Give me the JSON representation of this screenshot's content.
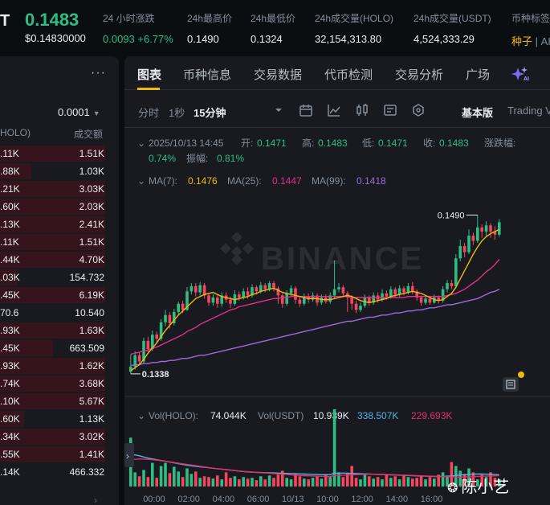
{
  "ticker": {
    "symbol": "T",
    "price": "0.1483",
    "price_usd": "$0.14830000",
    "stats": [
      {
        "label": "24 小时涨跌",
        "value": "0.0093 +6.77%",
        "kind": "green"
      },
      {
        "label": "24h最高价",
        "value": "0.1490",
        "kind": ""
      },
      {
        "label": "24h最低价",
        "value": "0.1324",
        "kind": ""
      },
      {
        "label": "24h成交量(HOLO)",
        "value": "32,154,313.80",
        "kind": ""
      },
      {
        "label": "24h成交量(USDT)",
        "value": "4,524,333.29",
        "kind": ""
      },
      {
        "label": "币种标签",
        "value": "种子",
        "extra": "| AI",
        "kind": "tag"
      }
    ]
  },
  "orderbook": {
    "more_label": "···",
    "precision": "0.0001",
    "col_left": "HOLO)",
    "col_right": "成交额",
    "rows": [
      {
        "a": ".11K",
        "b": "1.51K",
        "depth": 1.0
      },
      {
        "a": ".88K",
        "b": "1.03K",
        "depth": 0.3
      },
      {
        "a": ".21K",
        "b": "3.03K",
        "depth": 1.0
      },
      {
        "a": ".60K",
        "b": "2.03K",
        "depth": 1.0
      },
      {
        "a": ".13K",
        "b": "2.41K",
        "depth": 1.0
      },
      {
        "a": ".11K",
        "b": "1.51K",
        "depth": 1.0
      },
      {
        "a": ".44K",
        "b": "4.70K",
        "depth": 1.0
      },
      {
        "a": ".03K",
        "b": "154.732",
        "depth": 0.17
      },
      {
        "a": ".45K",
        "b": "6.19K",
        "depth": 1.0
      },
      {
        "a": "70.6",
        "b": "10.540",
        "depth": 0.0
      },
      {
        "a": ".93K",
        "b": "1.63K",
        "depth": 1.0
      },
      {
        "a": ".45K",
        "b": "663.509",
        "depth": 0.5
      },
      {
        "a": ".93K",
        "b": "1.62K",
        "depth": 1.0
      },
      {
        "a": ".74K",
        "b": "3.68K",
        "depth": 1.0
      },
      {
        "a": ".10K",
        "b": "5.67K",
        "depth": 1.0
      },
      {
        "a": ".60K",
        "b": "1.13K",
        "depth": 0.23
      },
      {
        "a": ".34K",
        "b": "3.02K",
        "depth": 1.0
      },
      {
        "a": ".55K",
        "b": "1.41K",
        "depth": 1.0
      },
      {
        "a": ".14K",
        "b": "466.332",
        "depth": 0.0
      }
    ]
  },
  "panel": {
    "tabs": [
      {
        "label": "图表",
        "active": true
      },
      {
        "label": "币种信息",
        "active": false
      },
      {
        "label": "交易数据",
        "active": false
      },
      {
        "label": "代币检测",
        "active": false
      },
      {
        "label": "交易分析",
        "active": false
      },
      {
        "label": "广场",
        "active": false
      }
    ],
    "toolbar": {
      "time_label": "分时",
      "one_sec": "1秒",
      "interval": "15分钟",
      "basic": "基本版",
      "tradingview": "Trading View"
    }
  },
  "chart_data": {
    "type": "candlestick",
    "interval": "15m",
    "info": {
      "date": "2025/10/13 14:45",
      "open_label": "开:",
      "open": "0.1471",
      "high_label": "高:",
      "high": "0.1483",
      "low_label": "低:",
      "low": "0.1471",
      "close_label": "收:",
      "close": "0.1483",
      "change_label": "涨跌幅:",
      "change": "0.74%",
      "amp_label": "振幅:",
      "amp": "0.81%"
    },
    "ma": [
      {
        "label": "MA(7):",
        "value": "0.1476",
        "color": "#f0b90b"
      },
      {
        "label": "MA(25):",
        "value": "0.1447",
        "color": "#e52e8a"
      },
      {
        "label": "MA(99):",
        "value": "0.1418",
        "color": "#9c6ade"
      }
    ],
    "high_marker": "0.1490",
    "low_marker": "0.1338",
    "watermark": "BINANCE",
    "price_range": [
      0.1325,
      0.1495
    ],
    "candles": [
      [
        0.1338,
        0.1343,
        0.1355,
        0.1336
      ],
      [
        0.1343,
        0.1354,
        0.1358,
        0.134
      ],
      [
        0.1354,
        0.1348,
        0.1357,
        0.1344
      ],
      [
        0.1348,
        0.1368,
        0.1371,
        0.1346
      ],
      [
        0.1368,
        0.136,
        0.1372,
        0.1357
      ],
      [
        0.136,
        0.1374,
        0.1378,
        0.1358
      ],
      [
        0.1374,
        0.137,
        0.1377,
        0.1366
      ],
      [
        0.137,
        0.1386,
        0.1389,
        0.1368
      ],
      [
        0.1386,
        0.1393,
        0.1398,
        0.1382
      ],
      [
        0.1393,
        0.1385,
        0.1396,
        0.138
      ],
      [
        0.1385,
        0.1396,
        0.1399,
        0.1383
      ],
      [
        0.1396,
        0.1404,
        0.1406,
        0.1393
      ],
      [
        0.1404,
        0.1398,
        0.1407,
        0.1395
      ],
      [
        0.1398,
        0.1416,
        0.142,
        0.1397
      ],
      [
        0.1416,
        0.1421,
        0.1424,
        0.1413
      ],
      [
        0.1421,
        0.1415,
        0.1424,
        0.1411
      ],
      [
        0.1415,
        0.1422,
        0.1425,
        0.1412
      ],
      [
        0.1422,
        0.1412,
        0.1424,
        0.1409
      ],
      [
        0.1412,
        0.1405,
        0.1414,
        0.1402
      ],
      [
        0.1405,
        0.141,
        0.1413,
        0.1402
      ],
      [
        0.141,
        0.1404,
        0.1413,
        0.14
      ],
      [
        0.1404,
        0.1412,
        0.1415,
        0.1401
      ],
      [
        0.1412,
        0.1408,
        0.1415,
        0.1405
      ],
      [
        0.1408,
        0.1404,
        0.1411,
        0.14
      ],
      [
        0.1404,
        0.1413,
        0.1417,
        0.1402
      ],
      [
        0.1413,
        0.141,
        0.1416,
        0.1407
      ],
      [
        0.141,
        0.1416,
        0.1419,
        0.1408
      ],
      [
        0.1416,
        0.1412,
        0.142,
        0.1409
      ],
      [
        0.1412,
        0.142,
        0.1423,
        0.141
      ],
      [
        0.142,
        0.1416,
        0.1422,
        0.1413
      ],
      [
        0.1416,
        0.1422,
        0.1425,
        0.1414
      ],
      [
        0.1422,
        0.1418,
        0.1424,
        0.1415
      ],
      [
        0.1418,
        0.1424,
        0.1426,
        0.1416
      ],
      [
        0.1424,
        0.1419,
        0.1426,
        0.1416
      ],
      [
        0.1419,
        0.1412,
        0.1421,
        0.1404
      ],
      [
        0.1412,
        0.1404,
        0.1414,
        0.14
      ],
      [
        0.1404,
        0.1414,
        0.1417,
        0.1402
      ],
      [
        0.1414,
        0.1419,
        0.1422,
        0.1411
      ],
      [
        0.1419,
        0.1408,
        0.1421,
        0.1404
      ],
      [
        0.1408,
        0.1404,
        0.1411,
        0.1401
      ],
      [
        0.1404,
        0.1411,
        0.1414,
        0.1402
      ],
      [
        0.1411,
        0.1408,
        0.1414,
        0.1405
      ],
      [
        0.1408,
        0.1412,
        0.1415,
        0.1406
      ],
      [
        0.1412,
        0.1405,
        0.1414,
        0.1402
      ],
      [
        0.1405,
        0.141,
        0.1413,
        0.1403
      ],
      [
        0.141,
        0.1406,
        0.1413,
        0.1404
      ],
      [
        0.1406,
        0.1412,
        0.1415,
        0.1404
      ],
      [
        0.1412,
        0.1418,
        0.1446,
        0.1409
      ],
      [
        0.1418,
        0.142,
        0.1424,
        0.1415
      ],
      [
        0.142,
        0.1414,
        0.1422,
        0.1411
      ],
      [
        0.1414,
        0.141,
        0.1416,
        0.1396
      ],
      [
        0.141,
        0.1404,
        0.1412,
        0.1398
      ],
      [
        0.1404,
        0.1398,
        0.1407,
        0.1395
      ],
      [
        0.1398,
        0.1402,
        0.1405,
        0.1396
      ],
      [
        0.1402,
        0.141,
        0.1413,
        0.14
      ],
      [
        0.141,
        0.1405,
        0.1412,
        0.1402
      ],
      [
        0.1405,
        0.1412,
        0.1415,
        0.1403
      ],
      [
        0.1412,
        0.1408,
        0.1415,
        0.1405
      ],
      [
        0.1408,
        0.1414,
        0.1418,
        0.1406
      ],
      [
        0.1414,
        0.1411,
        0.1417,
        0.1408
      ],
      [
        0.1411,
        0.1418,
        0.1421,
        0.1409
      ],
      [
        0.1418,
        0.1413,
        0.142,
        0.141
      ],
      [
        0.1413,
        0.1419,
        0.1422,
        0.1411
      ],
      [
        0.1419,
        0.1415,
        0.1421,
        0.1412
      ],
      [
        0.1415,
        0.1421,
        0.1424,
        0.1413
      ],
      [
        0.1421,
        0.1416,
        0.1425,
        0.1413
      ],
      [
        0.1416,
        0.141,
        0.1418,
        0.1407
      ],
      [
        0.141,
        0.1405,
        0.1412,
        0.1402
      ],
      [
        0.1405,
        0.1409,
        0.1412,
        0.1403
      ],
      [
        0.1409,
        0.1405,
        0.1411,
        0.1403
      ],
      [
        0.1405,
        0.141,
        0.1413,
        0.1404
      ],
      [
        0.141,
        0.1407,
        0.1412,
        0.1404
      ],
      [
        0.1407,
        0.1418,
        0.1421,
        0.1405
      ],
      [
        0.1418,
        0.1424,
        0.1427,
        0.1415
      ],
      [
        0.1424,
        0.1421,
        0.1427,
        0.1418
      ],
      [
        0.1421,
        0.1448,
        0.1452,
        0.1419
      ],
      [
        0.1448,
        0.146,
        0.1466,
        0.1445
      ],
      [
        0.146,
        0.1454,
        0.1463,
        0.1449
      ],
      [
        0.1454,
        0.147,
        0.1476,
        0.1452
      ],
      [
        0.147,
        0.1465,
        0.1473,
        0.1461
      ],
      [
        0.1465,
        0.1478,
        0.149,
        0.1463
      ],
      [
        0.1478,
        0.1474,
        0.1481,
        0.1468
      ],
      [
        0.1474,
        0.148,
        0.1484,
        0.147
      ],
      [
        0.148,
        0.1474,
        0.1482,
        0.1468
      ],
      [
        0.1474,
        0.1471,
        0.1479,
        0.1466
      ],
      [
        0.1471,
        0.1483,
        0.1486,
        0.1469
      ]
    ],
    "ma7": [
      0.1339,
      0.1342,
      0.1345,
      0.135,
      0.1356,
      0.1361,
      0.1366,
      0.1372,
      0.1378,
      0.1383,
      0.1388,
      0.1393,
      0.1397,
      0.1401,
      0.1405,
      0.1409,
      0.1411,
      0.1413,
      0.1414,
      0.1415,
      0.1413,
      0.1411,
      0.141,
      0.1409,
      0.1408,
      0.1409,
      0.141,
      0.1411,
      0.1413,
      0.1414,
      0.1416,
      0.1417,
      0.1418,
      0.1419,
      0.1417,
      0.1415,
      0.1414,
      0.1413,
      0.1412,
      0.1411,
      0.141,
      0.1409,
      0.1409,
      0.1409,
      0.1408,
      0.1408,
      0.1408,
      0.1409,
      0.141,
      0.1411,
      0.1412,
      0.1411,
      0.1409,
      0.1407,
      0.1406,
      0.1405,
      0.1406,
      0.1407,
      0.1408,
      0.1409,
      0.1411,
      0.1412,
      0.1413,
      0.1414,
      0.1415,
      0.1416,
      0.1415,
      0.1414,
      0.1412,
      0.141,
      0.1408,
      0.1407,
      0.1408,
      0.1411,
      0.1414,
      0.142,
      0.1428,
      0.1436,
      0.1444,
      0.1452,
      0.1459,
      0.1465,
      0.1469,
      0.1472,
      0.1474,
      0.1476
    ],
    "ma25": [
      0.1355,
      0.1356,
      0.1357,
      0.1358,
      0.1359,
      0.1361,
      0.1362,
      0.1364,
      0.1366,
      0.1368,
      0.137,
      0.1372,
      0.1374,
      0.1377,
      0.1379,
      0.1381,
      0.1384,
      0.1386,
      0.1388,
      0.139,
      0.1392,
      0.1394,
      0.1396,
      0.1398,
      0.1399,
      0.1401,
      0.1402,
      0.1403,
      0.1404,
      0.1405,
      0.1406,
      0.1407,
      0.1408,
      0.1409,
      0.1409,
      0.141,
      0.141,
      0.1411,
      0.1411,
      0.1411,
      0.1411,
      0.1411,
      0.1411,
      0.1411,
      0.1411,
      0.1411,
      0.1411,
      0.1411,
      0.1411,
      0.1411,
      0.1411,
      0.141,
      0.141,
      0.141,
      0.141,
      0.141,
      0.141,
      0.141,
      0.141,
      0.141,
      0.141,
      0.141,
      0.141,
      0.141,
      0.1411,
      0.1411,
      0.1411,
      0.1411,
      0.1411,
      0.1411,
      0.1411,
      0.1411,
      0.1411,
      0.1412,
      0.1413,
      0.1414,
      0.1416,
      0.1418,
      0.1421,
      0.1424,
      0.1427,
      0.1431,
      0.1435,
      0.1438,
      0.1442,
      0.1447
    ],
    "ma99": [
      0.1344,
      0.1345,
      0.1345,
      0.1346,
      0.1346,
      0.1347,
      0.1347,
      0.1348,
      0.1348,
      0.1349,
      0.1349,
      0.135,
      0.1351,
      0.1351,
      0.1352,
      0.1353,
      0.1354,
      0.1354,
      0.1355,
      0.1356,
      0.1357,
      0.1358,
      0.1359,
      0.136,
      0.1361,
      0.1362,
      0.1363,
      0.1364,
      0.1365,
      0.1366,
      0.1367,
      0.1368,
      0.1369,
      0.137,
      0.1371,
      0.1372,
      0.1373,
      0.1374,
      0.1375,
      0.1376,
      0.1377,
      0.1378,
      0.1379,
      0.138,
      0.1381,
      0.1382,
      0.1383,
      0.1384,
      0.1385,
      0.1386,
      0.1387,
      0.1387,
      0.1388,
      0.1389,
      0.139,
      0.1391,
      0.1391,
      0.1392,
      0.1393,
      0.1393,
      0.1394,
      0.1395,
      0.1395,
      0.1396,
      0.1397,
      0.1397,
      0.1398,
      0.1398,
      0.1399,
      0.14,
      0.14,
      0.1401,
      0.1402,
      0.1403,
      0.1403,
      0.1404,
      0.1405,
      0.1406,
      0.1407,
      0.1408,
      0.1409,
      0.1411,
      0.1413,
      0.1415,
      0.1416,
      0.1418
    ],
    "volume": {
      "header_label": "Vol(HOLO):",
      "header_value": "74.044K",
      "usdt_label": "Vol(USDT)",
      "usdt_value": "10.939K",
      "ma1_value": "338.507K",
      "ma1_color": "#54b4e6",
      "ma2_value": "229.693K",
      "ma2_color": "#e52e6b",
      "range": [
        0,
        1000
      ],
      "bars": [
        620,
        180,
        130,
        210,
        120,
        300,
        110,
        260,
        300,
        170,
        250,
        190,
        120,
        230,
        160,
        190,
        110,
        130,
        120,
        100,
        140,
        90,
        180,
        110,
        130,
        90,
        120,
        100,
        110,
        80,
        130,
        90,
        140,
        110,
        150,
        200,
        110,
        90,
        160,
        130,
        100,
        90,
        110,
        130,
        100,
        150,
        120,
        980,
        180,
        120,
        170,
        260,
        110,
        90,
        160,
        130,
        100,
        120,
        90,
        150,
        110,
        130,
        90,
        140,
        120,
        100,
        110,
        130,
        90,
        120,
        100,
        150,
        180,
        140,
        310,
        260,
        200,
        160,
        230,
        180,
        90,
        150,
        120,
        180,
        110,
        90
      ],
      "ma_a": [
        410,
        400,
        390,
        375,
        360,
        350,
        340,
        330,
        320,
        310,
        300,
        290,
        280,
        270,
        262,
        256,
        250,
        244,
        238,
        232,
        226,
        220,
        214,
        208,
        202,
        196,
        190,
        186,
        182,
        180,
        178,
        176,
        174,
        172,
        170,
        168,
        166,
        164,
        162,
        160,
        158,
        156,
        154,
        152,
        150,
        150,
        150,
        170,
        170,
        170,
        168,
        166,
        164,
        162,
        160,
        158,
        156,
        154,
        152,
        150,
        148,
        146,
        144,
        142,
        140,
        138,
        136,
        134,
        132,
        130,
        128,
        128,
        128,
        130,
        134,
        140,
        146,
        150,
        154,
        156,
        158,
        158,
        156,
        154,
        152,
        150
      ],
      "ma_b": [
        340,
        345,
        350,
        348,
        345,
        340,
        335,
        328,
        320,
        312,
        304,
        296,
        288,
        280,
        272,
        264,
        256,
        248,
        240,
        232,
        226,
        220,
        214,
        208,
        202,
        196,
        192,
        188,
        184,
        180,
        176,
        172,
        168,
        164,
        160,
        156,
        152,
        148,
        144,
        140,
        138,
        136,
        134,
        132,
        130,
        128,
        126,
        140,
        142,
        144,
        146,
        148,
        150,
        152,
        154,
        156,
        156,
        156,
        154,
        152,
        150,
        148,
        146,
        144,
        142,
        140,
        138,
        136,
        134,
        132,
        130,
        128,
        126,
        124,
        122,
        120,
        120,
        122,
        124,
        126,
        128,
        130,
        132,
        134,
        136,
        138
      ]
    },
    "time_ticks": [
      {
        "label": "00:00",
        "idx": 1
      },
      {
        "label": "02:00",
        "idx": 9
      },
      {
        "label": "04:00",
        "idx": 17
      },
      {
        "label": "06:00",
        "idx": 25
      },
      {
        "label": "10/13",
        "idx": 33
      },
      {
        "label": "10:00",
        "idx": 41
      },
      {
        "label": "12:00",
        "idx": 49
      },
      {
        "label": "14:00",
        "idx": 57
      },
      {
        "label": "16:00",
        "idx": 65
      }
    ]
  },
  "watermark_user": "陈小艺",
  "colors": {
    "up": "#2ebd85",
    "down": "#f6465d",
    "accent": "#f0b90b",
    "panel_bg": "#181a20",
    "page_bg": "#0b0e11"
  }
}
